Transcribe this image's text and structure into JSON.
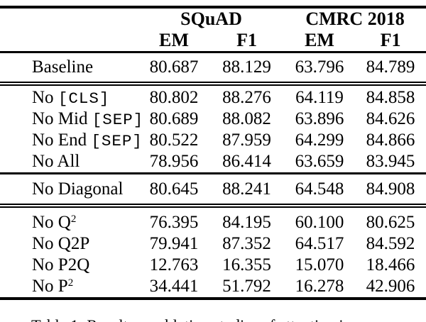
{
  "page": {
    "background": "#ffffff",
    "text_color": "#000000",
    "rule_color": "#000000"
  },
  "table": {
    "group_headers": [
      {
        "label": "SQuAD",
        "colspan": 2
      },
      {
        "label": "CMRC 2018",
        "colspan": 2
      }
    ],
    "col_headers": [
      "EM",
      "F1",
      "EM",
      "F1"
    ],
    "sections": [
      {
        "rows": [
          {
            "label": [
              [
                "Baseline",
                "serif"
              ]
            ],
            "values": [
              "80.687",
              "88.129",
              "63.796",
              "84.789"
            ]
          }
        ]
      },
      {
        "rows": [
          {
            "label": [
              [
                "No ",
                "serif"
              ],
              [
                "[CLS]",
                "mono"
              ]
            ],
            "values": [
              "80.802",
              "88.276",
              "64.119",
              "84.858"
            ]
          },
          {
            "label": [
              [
                "No Mid ",
                "serif"
              ],
              [
                "[SEP]",
                "mono"
              ]
            ],
            "values": [
              "80.689",
              "88.082",
              "63.896",
              "84.626"
            ]
          },
          {
            "label": [
              [
                "No End ",
                "serif"
              ],
              [
                "[SEP]",
                "mono"
              ]
            ],
            "values": [
              "80.522",
              "87.959",
              "64.299",
              "84.866"
            ]
          },
          {
            "label": [
              [
                "No All",
                "serif"
              ]
            ],
            "values": [
              "78.956",
              "86.414",
              "63.659",
              "83.945"
            ]
          }
        ]
      },
      {
        "rows": [
          {
            "label": [
              [
                "No Diagonal",
                "serif"
              ]
            ],
            "values": [
              "80.645",
              "88.241",
              "64.548",
              "84.908"
            ]
          }
        ]
      },
      {
        "rows": [
          {
            "label": [
              [
                "No Q",
                "serif"
              ],
              [
                "2",
                "sup"
              ]
            ],
            "values": [
              "76.395",
              "84.195",
              "60.100",
              "80.625"
            ]
          },
          {
            "label": [
              [
                "No Q2P",
                "serif"
              ]
            ],
            "values": [
              "79.941",
              "87.352",
              "64.517",
              "84.592"
            ]
          },
          {
            "label": [
              [
                "No P2Q",
                "serif"
              ]
            ],
            "values": [
              "12.763",
              "16.355",
              "15.070",
              "18.466"
            ]
          },
          {
            "label": [
              [
                "No P",
                "serif"
              ],
              [
                "2",
                "sup"
              ]
            ],
            "values": [
              "34.441",
              "51.792",
              "16.278",
              "42.906"
            ]
          }
        ]
      }
    ]
  },
  "caption": {
    "text": "Table 1: Results on ablation studies of attention in"
  }
}
